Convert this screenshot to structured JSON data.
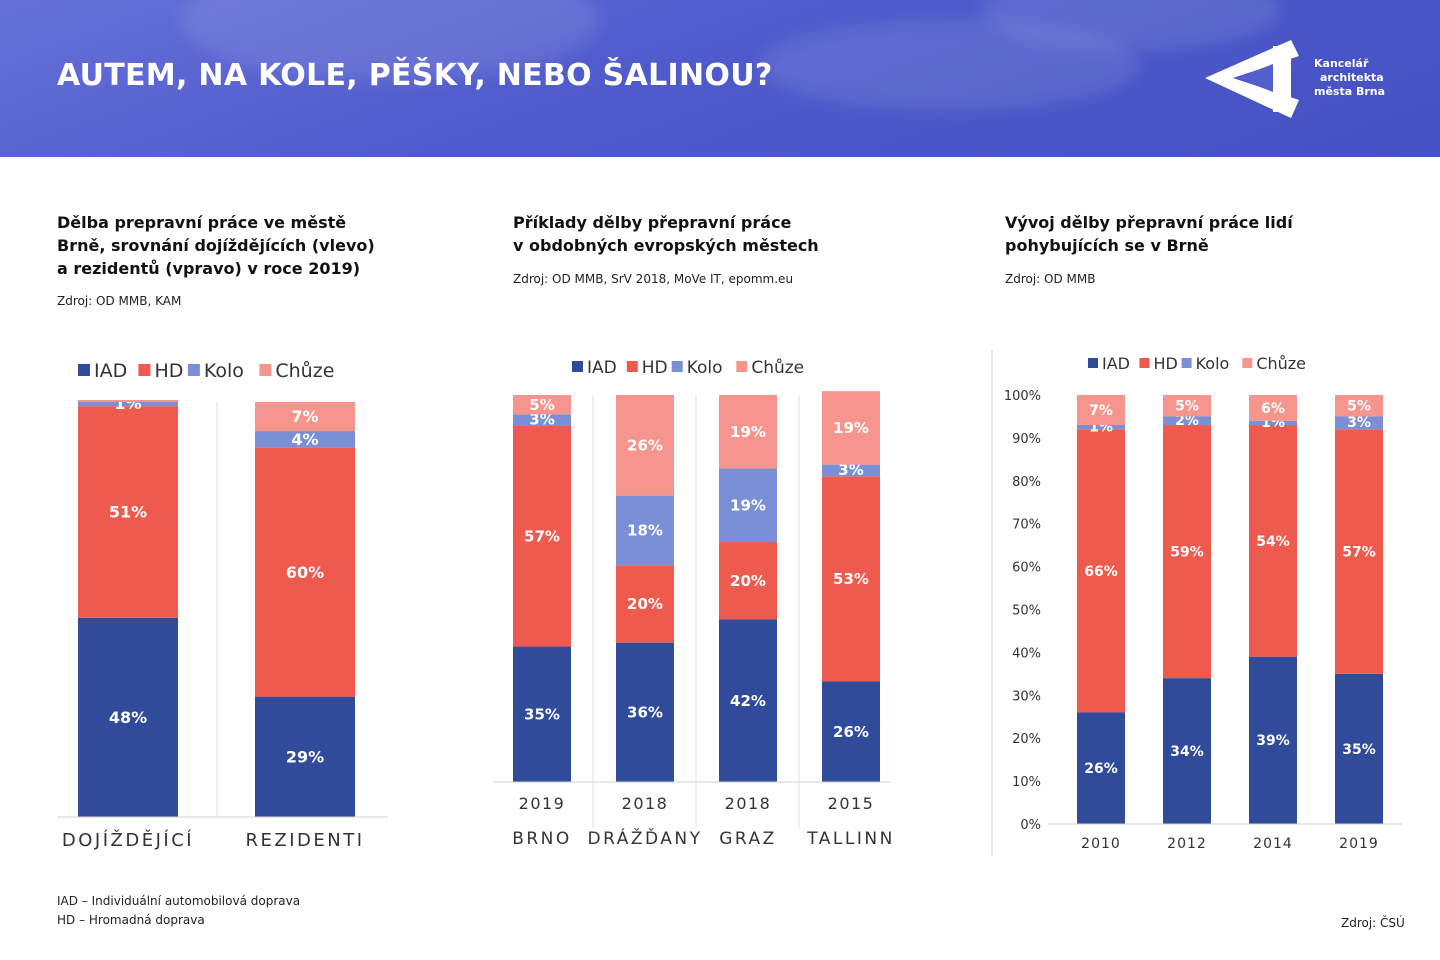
{
  "header": {
    "title": "AUTEM, NA KOLE, PĚŠKY, NEBO ŠALINOU?",
    "logo_lines": [
      "Kancelář",
      "architekta",
      "města Brna"
    ]
  },
  "colors": {
    "IAD": "#2f4b9a",
    "HD": "#ee5a4e",
    "Kolo": "#7b8fd6",
    "Chuze": "#f6958d"
  },
  "footer": {
    "iad_note": "IAD – Individuální automobilová doprava",
    "hd_note": "HD  – Hromadná doprava",
    "source": "Zdroj: ČSÚ"
  },
  "panels": [
    {
      "title": "Dělba prepravní práce ve městě\nBrně, srovnání dojíždějících (vlevo)\na rezidentů (vpravo) v roce 2019)",
      "source": "Zdroj: OD MMB, KAM"
    },
    {
      "title": "Příklady dělby přepravní práce\nv obdobných evropských městech",
      "source": "Zdroj: OD MMB, SrV 2018, MoVe IT, epomm.eu"
    },
    {
      "title": "Vývoj dělby přepravní práce lidí\npohybujících se v Brně",
      "source": "Zdroj: OD MMB"
    }
  ],
  "chart_data": [
    {
      "type": "bar",
      "stacked": true,
      "categories": [
        "DOJÍŽDĚJÍCÍ",
        "REZIDENTI"
      ],
      "series": [
        {
          "name": "IAD",
          "values": [
            48,
            29
          ],
          "labels": [
            "48%",
            "29%"
          ]
        },
        {
          "name": "HD",
          "values": [
            51,
            60
          ],
          "labels": [
            "51%",
            "60%"
          ]
        },
        {
          "name": "Kolo",
          "values": [
            1,
            4
          ],
          "labels": [
            "1%",
            "4%"
          ]
        },
        {
          "name": "Chůze",
          "values": [
            0.5,
            7
          ],
          "labels": [
            "",
            "7%"
          ]
        }
      ],
      "legend": "top",
      "grid": false
    },
    {
      "type": "bar",
      "stacked": true,
      "categories": [
        "BRNO",
        "DRÁŽĎANY",
        "GRAZ",
        "TALLINN"
      ],
      "years": [
        "2019",
        "2018",
        "2018",
        "2015"
      ],
      "series": [
        {
          "name": "IAD",
          "values": [
            35,
            36,
            42,
            26
          ],
          "labels": [
            "35%",
            "36%",
            "42%",
            "26%"
          ]
        },
        {
          "name": "HD",
          "values": [
            57,
            20,
            20,
            53
          ],
          "labels": [
            "57%",
            "20%",
            "20%",
            "53%"
          ]
        },
        {
          "name": "Kolo",
          "values": [
            3,
            18,
            19,
            3
          ],
          "labels": [
            "3%",
            "18%",
            "19%",
            "3%"
          ]
        },
        {
          "name": "Chůze",
          "values": [
            5,
            26,
            19,
            19
          ],
          "labels": [
            "5%",
            "26%",
            "19%",
            "19%"
          ]
        }
      ],
      "legend": "top",
      "grid": false
    },
    {
      "type": "bar",
      "stacked": true,
      "categories": [
        "2010",
        "2012",
        "2014",
        "2019"
      ],
      "series": [
        {
          "name": "IAD",
          "values": [
            26,
            34,
            39,
            35
          ],
          "labels": [
            "26%",
            "34%",
            "39%",
            "35%"
          ]
        },
        {
          "name": "HD",
          "values": [
            66,
            59,
            54,
            57
          ],
          "labels": [
            "66%",
            "59%",
            "54%",
            "57%"
          ]
        },
        {
          "name": "Kolo",
          "values": [
            1,
            2,
            1,
            3
          ],
          "labels": [
            "1%",
            "2%",
            "1%",
            "3%"
          ]
        },
        {
          "name": "Chůze",
          "values": [
            7,
            5,
            6,
            5
          ],
          "labels": [
            "7%",
            "5%",
            "6%",
            "5%"
          ]
        }
      ],
      "yticks": [
        "0%",
        "10%",
        "20%",
        "30%",
        "40%",
        "50%",
        "60%",
        "70%",
        "80%",
        "90%",
        "100%"
      ],
      "ylim": [
        0,
        100
      ],
      "legend": "top",
      "grid": false
    }
  ]
}
